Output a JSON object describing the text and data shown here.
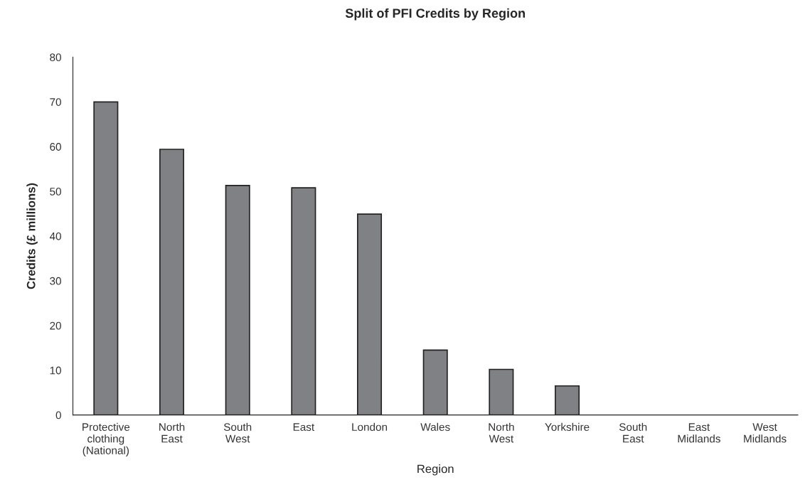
{
  "chart_data": {
    "type": "bar",
    "title": "Split of PFI Credits by Region",
    "xlabel": "Region",
    "ylabel": "Credits (£ millions)",
    "categories": [
      "Protective\nclothing\n(National)",
      "North\nEast",
      "South\nWest",
      "East",
      "London",
      "Wales",
      "North\nWest",
      "Yorkshire",
      "South\nEast",
      "East\nMidlands",
      "West\nMidlands"
    ],
    "values": [
      70,
      59.4,
      51.3,
      50.8,
      44.9,
      14.5,
      10.2,
      6.5,
      0,
      0,
      0
    ],
    "color": "#808184",
    "ylim": [
      0,
      80
    ],
    "yticks": [
      0,
      10,
      20,
      30,
      40,
      50,
      60,
      70,
      80
    ],
    "grid": false
  }
}
